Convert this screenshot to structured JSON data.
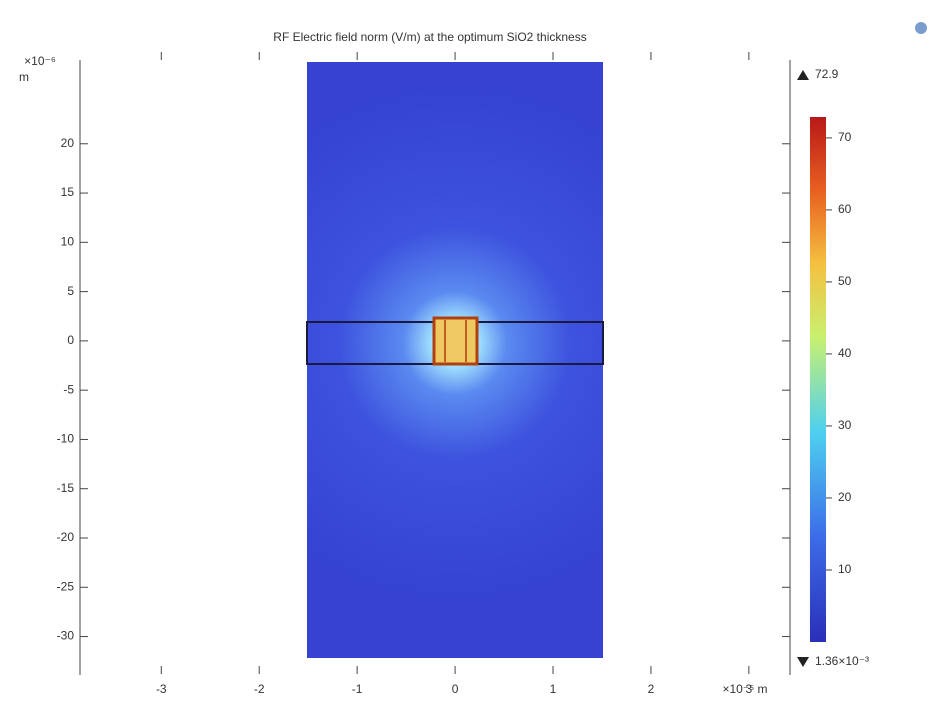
{
  "chart_data": {
    "type": "surface",
    "title": "RF Electric field norm (V/m) at the optimum SiO2 thickness",
    "xlabel": "×10⁻⁵ m",
    "ylabel_multiplier": "×10⁻⁶",
    "ylabel_unit": "m",
    "xlim": [
      -3.83,
      3.42
    ],
    "xticks": [
      -3,
      -2,
      -1,
      0,
      1,
      2,
      3
    ],
    "ylim": [
      -33.9,
      28.5
    ],
    "yticks": [
      20,
      15,
      10,
      5,
      0,
      -5,
      -10,
      -15,
      -20,
      -25,
      -30
    ],
    "colorbar": {
      "clim": [
        0,
        72.9
      ],
      "ticks": [
        10,
        20,
        30,
        40,
        50,
        60,
        70
      ],
      "max": 72.9,
      "min": {
        "value": 0.00136,
        "label": "1.36×10⁻³"
      }
    }
  }
}
